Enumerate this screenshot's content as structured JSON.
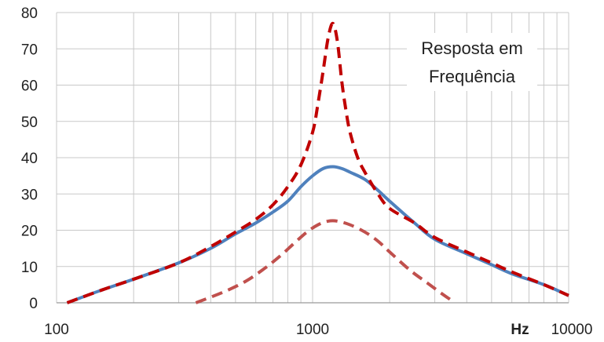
{
  "chart_data": {
    "type": "line",
    "xscale": "log",
    "xlim": [
      100,
      10000
    ],
    "ylim": [
      0,
      80
    ],
    "grid": true,
    "x_tick_labels": [
      "100",
      "1000",
      "10000"
    ],
    "y_tick_labels": [
      "0",
      "10",
      "20",
      "30",
      "40",
      "50",
      "60",
      "70",
      "80"
    ],
    "x_unit": "Hz",
    "annotation": [
      "Resposta em",
      "Frequência"
    ],
    "series": [
      {
        "style": "solid",
        "color": "#4f81bd",
        "x": [
          110,
          150,
          200,
          300,
          400,
          500,
          600,
          700,
          800,
          900,
          1000,
          1100,
          1200,
          1300,
          1400,
          1600,
          1800,
          2000,
          2500,
          3000,
          4000,
          5000,
          6000,
          8000,
          10000
        ],
        "y": [
          0,
          3.5,
          6.5,
          11,
          15,
          19,
          22,
          25,
          28,
          32,
          35,
          37,
          37.5,
          37,
          36,
          34,
          31,
          28,
          22,
          17.5,
          13.5,
          10.5,
          8,
          5,
          2
        ]
      },
      {
        "style": "dashed",
        "color": "#c00000",
        "x": [
          110,
          150,
          200,
          300,
          400,
          500,
          600,
          700,
          800,
          900,
          1000,
          1050,
          1100,
          1150,
          1200,
          1250,
          1300,
          1350,
          1400,
          1500,
          1600,
          1800,
          2000,
          2500,
          3000,
          4000,
          5000,
          6000,
          8000,
          10000
        ],
        "y": [
          0,
          3.5,
          6.5,
          11,
          15.5,
          19.5,
          23,
          27,
          32,
          38,
          47,
          55,
          64,
          73,
          77,
          72,
          61,
          53,
          47,
          40,
          36,
          30,
          26,
          22,
          18,
          14,
          11,
          8.5,
          5,
          2
        ]
      },
      {
        "style": "dashed",
        "color": "#c0504d",
        "x": [
          350,
          450,
          550,
          650,
          750,
          850,
          950,
          1050,
          1150,
          1250,
          1400,
          1600,
          1800,
          2000,
          2400,
          2800,
          3200,
          3600
        ],
        "y": [
          0,
          3,
          6,
          9.5,
          13,
          16.5,
          19.5,
          21.5,
          22.5,
          22.5,
          21.5,
          19.5,
          17,
          14,
          9,
          5.5,
          2.5,
          0
        ]
      }
    ]
  }
}
